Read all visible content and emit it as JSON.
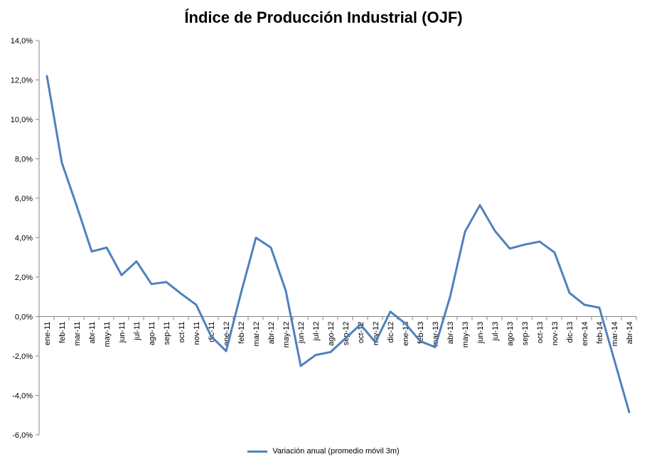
{
  "chart_data": {
    "type": "line",
    "title": "Índice de Producción Industrial (OJF)",
    "xlabel": "",
    "ylabel": "",
    "ylim": [
      -6,
      14
    ],
    "yticks": [
      14,
      12,
      10,
      8,
      6,
      4,
      2,
      0,
      -2,
      -4,
      -6
    ],
    "ytick_labels": [
      "14,0%",
      "12,0%",
      "10,0%",
      "8,0%",
      "6,0%",
      "4,0%",
      "2,0%",
      "0,0%",
      "-2,0%",
      "-4,0%",
      "-6,0%"
    ],
    "grid": false,
    "legend_position": "bottom",
    "categories": [
      "ene-11",
      "feb-11",
      "mar-11",
      "abr-11",
      "may-11",
      "jun-11",
      "jul-11",
      "ago-11",
      "sep-11",
      "oct-11",
      "nov-11",
      "dic-11",
      "ene-12",
      "feb-12",
      "mar-12",
      "abr-12",
      "may-12",
      "jun-12",
      "jul-12",
      "ago-12",
      "sep-12",
      "oct-12",
      "nov-12",
      "dic-12",
      "ene-13",
      "feb-13",
      "mar-13",
      "abr-13",
      "may-13",
      "jun-13",
      "jul-13",
      "ago-13",
      "sep-13",
      "oct-13",
      "nov-13",
      "dic-13",
      "ene-14",
      "feb-14",
      "mar-14",
      "abr-14"
    ],
    "series": [
      {
        "name": "Variación anual (promedio móvil 3m)",
        "color": "#4f81bd",
        "values": [
          12.2,
          7.8,
          5.6,
          3.3,
          3.5,
          2.1,
          2.8,
          1.65,
          1.75,
          1.15,
          0.6,
          -1.0,
          -1.75,
          1.2,
          4.0,
          3.5,
          1.3,
          -2.5,
          -1.95,
          -1.8,
          -1.1,
          -0.4,
          -1.3,
          0.25,
          -0.35,
          -1.25,
          -1.55,
          1.0,
          4.3,
          5.65,
          4.35,
          3.45,
          3.65,
          3.8,
          3.25,
          1.2,
          0.6,
          0.45,
          -2.2,
          -4.85
        ]
      }
    ]
  }
}
